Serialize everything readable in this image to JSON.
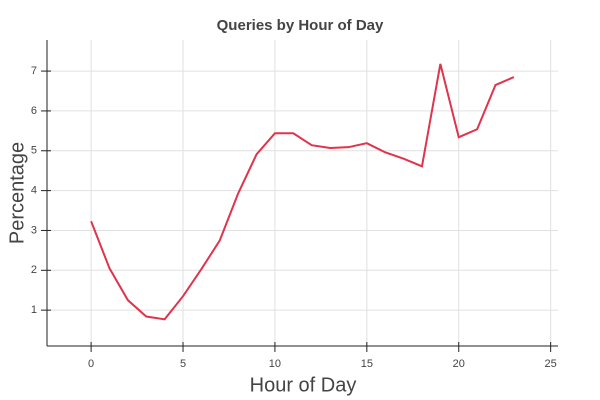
{
  "chart_data": {
    "type": "line",
    "title": "Queries by Hour of Day",
    "xlabel": "Hour of Day",
    "ylabel": "Percentage",
    "x": [
      0,
      1,
      2,
      3,
      4,
      5,
      6,
      7,
      8,
      9,
      10,
      11,
      12,
      13,
      14,
      15,
      16,
      17,
      18,
      19,
      20,
      21,
      22,
      23
    ],
    "series": [
      {
        "name": "Percentage",
        "color": "#e0334c",
        "values": [
          3.23,
          2.05,
          1.25,
          0.84,
          0.77,
          1.35,
          2.03,
          2.75,
          3.93,
          4.91,
          5.44,
          5.44,
          5.14,
          5.07,
          5.09,
          5.19,
          4.96,
          4.8,
          4.61,
          7.18,
          5.34,
          5.54,
          6.65,
          6.85
        ]
      }
    ],
    "xlim": [
      -2.4,
      25.4
    ],
    "xticks": [
      0,
      5,
      10,
      15,
      20,
      25
    ],
    "ylim": [
      0.1,
      7.78
    ],
    "yticks": [
      1,
      2,
      3,
      4,
      5,
      6,
      7
    ],
    "grid": true
  }
}
